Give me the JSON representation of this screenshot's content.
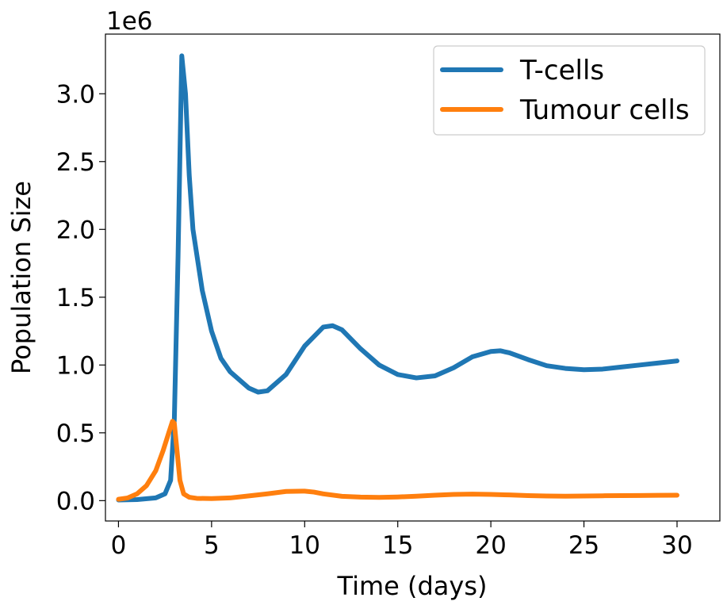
{
  "chart_data": {
    "type": "line",
    "xlabel": "Time (days)",
    "ylabel": "Population Size",
    "offset_label": "1e6",
    "xlim": [
      0,
      30
    ],
    "ylim": [
      0,
      3.3
    ],
    "y_multiplier": 1000000,
    "xticks": [
      0,
      5,
      10,
      15,
      20,
      25,
      30
    ],
    "xtick_labels": [
      "0",
      "5",
      "10",
      "15",
      "20",
      "25",
      "30"
    ],
    "yticks": [
      0,
      0.5,
      1.0,
      1.5,
      2.0,
      2.5,
      3.0
    ],
    "ytick_labels": [
      "0.0",
      "0.5",
      "1.0",
      "1.5",
      "2.0",
      "2.5",
      "3.0"
    ],
    "grid": false,
    "legend_position": "top-right",
    "series": [
      {
        "name": "T-cells",
        "color": "#1f77b4",
        "x": [
          0,
          1,
          2,
          2.5,
          2.8,
          3.0,
          3.2,
          3.4,
          3.6,
          3.8,
          4.0,
          4.5,
          5,
          5.5,
          6,
          7,
          7.5,
          8,
          9,
          10,
          11,
          11.5,
          12,
          13,
          14,
          15,
          16,
          17,
          18,
          19,
          20,
          20.5,
          21,
          22,
          23,
          24,
          25,
          26,
          27,
          28,
          29,
          30
        ],
        "y": [
          0.005,
          0.008,
          0.02,
          0.05,
          0.15,
          0.6,
          1.8,
          3.28,
          3.0,
          2.4,
          2.0,
          1.55,
          1.25,
          1.05,
          0.95,
          0.83,
          0.8,
          0.81,
          0.93,
          1.14,
          1.28,
          1.29,
          1.26,
          1.12,
          1.0,
          0.93,
          0.905,
          0.92,
          0.98,
          1.06,
          1.1,
          1.105,
          1.09,
          1.04,
          0.995,
          0.975,
          0.965,
          0.97,
          0.985,
          1.0,
          1.015,
          1.03
        ]
      },
      {
        "name": "Tumour cells",
        "color": "#ff7f0e",
        "x": [
          0,
          0.5,
          1,
          1.5,
          2,
          2.4,
          2.7,
          2.9,
          3.0,
          3.1,
          3.3,
          3.5,
          3.8,
          4.2,
          5,
          6,
          7,
          8,
          9,
          10,
          10.5,
          11,
          12,
          13,
          14,
          15,
          16,
          17,
          18,
          19,
          20,
          21,
          22,
          23,
          24,
          25,
          26,
          27,
          28,
          29,
          30
        ],
        "y": [
          0.01,
          0.02,
          0.05,
          0.11,
          0.22,
          0.37,
          0.5,
          0.585,
          0.57,
          0.43,
          0.15,
          0.05,
          0.025,
          0.017,
          0.015,
          0.02,
          0.035,
          0.05,
          0.068,
          0.07,
          0.063,
          0.05,
          0.032,
          0.026,
          0.024,
          0.027,
          0.033,
          0.04,
          0.046,
          0.048,
          0.046,
          0.042,
          0.037,
          0.034,
          0.033,
          0.034,
          0.036,
          0.037,
          0.038,
          0.039,
          0.04
        ]
      }
    ]
  }
}
